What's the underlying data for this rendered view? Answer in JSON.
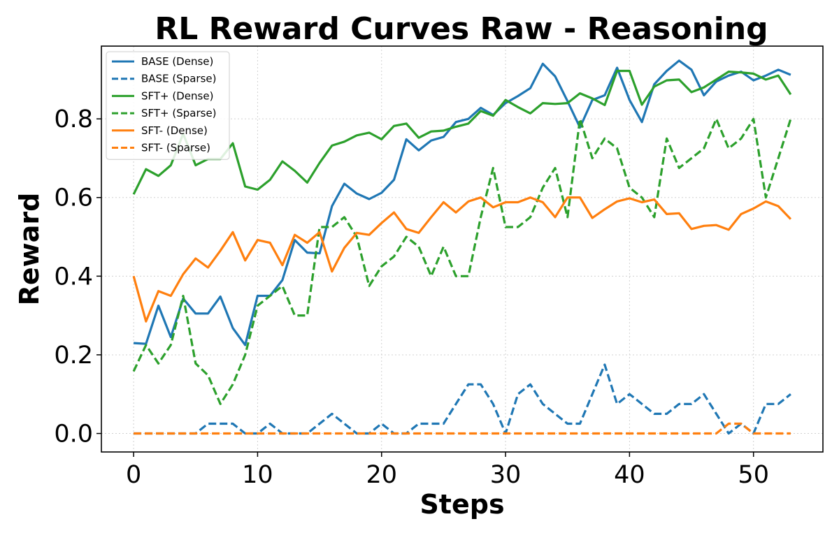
{
  "chart_data": {
    "type": "line",
    "title": "RL Reward Curves Raw - Reasoning",
    "xlabel": "Steps",
    "ylabel": "Reward",
    "xlim": [
      -2.6,
      55.6
    ],
    "ylim": [
      -0.047,
      0.985
    ],
    "xticks": [
      0,
      10,
      20,
      30,
      40,
      50
    ],
    "yticks": [
      0.0,
      0.2,
      0.4,
      0.6,
      0.8
    ],
    "xtick_labels": [
      "0",
      "10",
      "20",
      "30",
      "40",
      "50"
    ],
    "ytick_labels": [
      "0.0",
      "0.2",
      "0.4",
      "0.6",
      "0.8"
    ],
    "grid": true,
    "legend_position": "top-left",
    "x": [
      0,
      1,
      2,
      3,
      4,
      5,
      6,
      7,
      8,
      9,
      10,
      11,
      12,
      13,
      14,
      15,
      16,
      17,
      18,
      19,
      20,
      21,
      22,
      23,
      24,
      25,
      26,
      27,
      28,
      29,
      30,
      31,
      32,
      33,
      34,
      35,
      36,
      37,
      38,
      39,
      40,
      41,
      42,
      43,
      44,
      45,
      46,
      47,
      48,
      49,
      50,
      51,
      52,
      53
    ],
    "series": [
      {
        "name": "BASE (Dense)",
        "color": "#1f77b4",
        "style": "solid",
        "values": [
          0.23,
          0.228,
          0.325,
          0.245,
          0.343,
          0.305,
          0.305,
          0.348,
          0.268,
          0.225,
          0.35,
          0.35,
          0.39,
          0.492,
          0.46,
          0.458,
          0.578,
          0.635,
          0.61,
          0.596,
          0.612,
          0.645,
          0.748,
          0.72,
          0.745,
          0.754,
          0.792,
          0.8,
          0.828,
          0.81,
          0.84,
          0.858,
          0.878,
          0.94,
          0.908,
          0.845,
          0.778,
          0.848,
          0.86,
          0.93,
          0.848,
          0.792,
          0.888,
          0.922,
          0.948,
          0.925,
          0.86,
          0.895,
          0.91,
          0.92,
          0.898,
          0.91,
          0.925,
          0.912
        ]
      },
      {
        "name": "BASE (Sparse)",
        "color": "#1f77b4",
        "style": "dashed",
        "values": [
          0,
          0,
          0,
          0,
          0,
          0,
          0.025,
          0.025,
          0.025,
          0,
          0,
          0.025,
          0,
          0,
          0,
          0.025,
          0.05,
          0.025,
          0,
          0,
          0.025,
          0,
          0,
          0.025,
          0.025,
          0.025,
          0.075,
          0.125,
          0.125,
          0.075,
          0,
          0.1,
          0.125,
          0.075,
          0.05,
          0.025,
          0.025,
          0.1,
          0.175,
          0.075,
          0.1,
          0.075,
          0.05,
          0.05,
          0.075,
          0.075,
          0.1,
          0.05,
          0,
          0.025,
          0,
          0.075,
          0.075,
          0.1
        ]
      },
      {
        "name": "SFT+ (Dense)",
        "color": "#2ca02c",
        "style": "solid",
        "values": [
          0.608,
          0.672,
          0.655,
          0.682,
          0.762,
          0.682,
          0.698,
          0.698,
          0.738,
          0.628,
          0.62,
          0.645,
          0.692,
          0.668,
          0.638,
          0.688,
          0.732,
          0.742,
          0.758,
          0.765,
          0.748,
          0.782,
          0.788,
          0.752,
          0.768,
          0.77,
          0.78,
          0.788,
          0.82,
          0.808,
          0.848,
          0.83,
          0.814,
          0.84,
          0.838,
          0.84,
          0.865,
          0.852,
          0.835,
          0.922,
          0.922,
          0.836,
          0.882,
          0.898,
          0.9,
          0.868,
          0.88,
          0.9,
          0.92,
          0.918,
          0.915,
          0.9,
          0.91,
          0.862
        ]
      },
      {
        "name": "SFT+ (Sparse)",
        "color": "#2ca02c",
        "style": "dashed",
        "values": [
          0.158,
          0.225,
          0.178,
          0.225,
          0.35,
          0.178,
          0.148,
          0.075,
          0.125,
          0.2,
          0.325,
          0.35,
          0.375,
          0.3,
          0.3,
          0.525,
          0.525,
          0.55,
          0.5,
          0.375,
          0.425,
          0.45,
          0.5,
          0.475,
          0.4,
          0.475,
          0.4,
          0.4,
          0.55,
          0.675,
          0.525,
          0.525,
          0.55,
          0.625,
          0.675,
          0.55,
          0.8,
          0.7,
          0.75,
          0.725,
          0.625,
          0.6,
          0.55,
          0.75,
          0.675,
          0.7,
          0.725,
          0.8,
          0.725,
          0.75,
          0.8,
          0.6,
          0.7,
          0.8
        ]
      },
      {
        "name": "SFT- (Dense)",
        "color": "#ff7f0e",
        "style": "solid",
        "values": [
          0.4,
          0.285,
          0.362,
          0.35,
          0.405,
          0.445,
          0.422,
          0.465,
          0.512,
          0.44,
          0.492,
          0.485,
          0.428,
          0.505,
          0.485,
          0.512,
          0.412,
          0.472,
          0.51,
          0.505,
          0.535,
          0.562,
          0.52,
          0.51,
          0.55,
          0.588,
          0.562,
          0.59,
          0.6,
          0.575,
          0.588,
          0.588,
          0.6,
          0.588,
          0.55,
          0.6,
          0.6,
          0.548,
          0.57,
          0.59,
          0.598,
          0.588,
          0.595,
          0.558,
          0.56,
          0.52,
          0.528,
          0.53,
          0.518,
          0.558,
          0.572,
          0.59,
          0.578,
          0.545
        ]
      },
      {
        "name": "SFT- (Sparse)",
        "color": "#ff7f0e",
        "style": "dashed",
        "values": [
          0,
          0,
          0,
          0,
          0,
          0,
          0,
          0,
          0,
          0,
          0,
          0,
          0,
          0,
          0,
          0,
          0,
          0,
          0,
          0,
          0,
          0,
          0,
          0,
          0,
          0,
          0,
          0,
          0,
          0,
          0,
          0,
          0,
          0,
          0,
          0,
          0,
          0,
          0,
          0,
          0,
          0,
          0,
          0,
          0,
          0,
          0,
          0,
          0.025,
          0.025,
          0,
          0,
          0,
          0
        ]
      }
    ]
  }
}
